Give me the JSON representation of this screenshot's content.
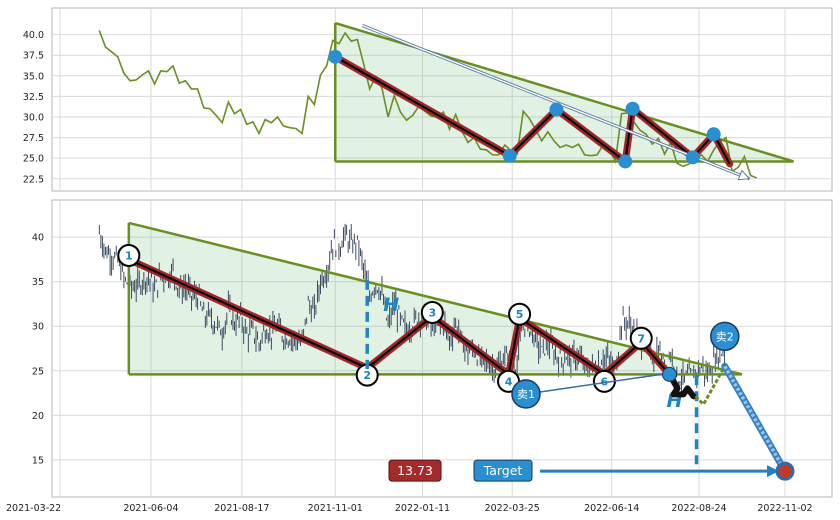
{
  "chart_data": [
    {
      "type": "line",
      "panel": "top",
      "y_ticks": [
        "40.0",
        "37.5",
        "35.0",
        "32.5",
        "30.0",
        "27.5",
        "25.0",
        "22.5"
      ],
      "ylim": [
        21.5,
        42.5
      ],
      "grid": true,
      "series": [
        {
          "color": "#6b8e23",
          "x": [
            "2021-04-23",
            "2021-04-28",
            "2021-05-03",
            "2021-05-08",
            "2021-05-13",
            "2021-05-18",
            "2021-05-23",
            "2021-05-28",
            "2021-06-02",
            "2021-06-07",
            "2021-06-12",
            "2021-06-17",
            "2021-06-22",
            "2021-06-27",
            "2021-07-02",
            "2021-07-07",
            "2021-07-12",
            "2021-07-17",
            "2021-07-22",
            "2021-07-27",
            "2021-08-01",
            "2021-08-06",
            "2021-08-11",
            "2021-08-16",
            "2021-08-21",
            "2021-08-26",
            "2021-08-31",
            "2021-09-05",
            "2021-09-10",
            "2021-09-15",
            "2021-09-20",
            "2021-09-25",
            "2021-09-30",
            "2021-10-05",
            "2021-10-10",
            "2021-10-15",
            "2021-10-20",
            "2021-10-25",
            "2021-10-30",
            "2021-11-04",
            "2021-11-09",
            "2021-11-14",
            "2021-11-19",
            "2021-11-24",
            "2021-11-29",
            "2021-12-04",
            "2021-12-09",
            "2021-12-14",
            "2021-12-19",
            "2021-12-24",
            "2021-12-29",
            "2022-01-03",
            "2022-01-08",
            "2022-01-13",
            "2022-01-18",
            "2022-01-23",
            "2022-01-28",
            "2022-02-02",
            "2022-02-07",
            "2022-02-12",
            "2022-02-17",
            "2022-02-22",
            "2022-02-27",
            "2022-03-04",
            "2022-03-09",
            "2022-03-14",
            "2022-03-19",
            "2022-03-24",
            "2022-03-29",
            "2022-04-03",
            "2022-04-08",
            "2022-04-13",
            "2022-04-18",
            "2022-04-23",
            "2022-04-28",
            "2022-05-03",
            "2022-05-08",
            "2022-05-13",
            "2022-05-18",
            "2022-05-23",
            "2022-05-28",
            "2022-06-02",
            "2022-06-07",
            "2022-06-12",
            "2022-06-17",
            "2022-06-22",
            "2022-06-27",
            "2022-07-02",
            "2022-07-07",
            "2022-07-12",
            "2022-07-17",
            "2022-07-22",
            "2022-07-27",
            "2022-08-01",
            "2022-08-06",
            "2022-08-11",
            "2022-08-16",
            "2022-08-21",
            "2022-08-26",
            "2022-08-31",
            "2022-09-05",
            "2022-09-10",
            "2022-09-15",
            "2022-09-20",
            "2022-09-25",
            "2022-09-30",
            "2022-10-05",
            "2022-10-10"
          ],
          "values": [
            40.5,
            38.5,
            37.9,
            37.3,
            35.3,
            34.4,
            34.5,
            35.1,
            35.6,
            34.0,
            35.6,
            35.5,
            36.2,
            34.1,
            34.4,
            33.4,
            33.4,
            31.1,
            31.0,
            30.2,
            29.3,
            31.8,
            30.4,
            30.9,
            29.1,
            29.4,
            28.0,
            29.7,
            29.3,
            30.0,
            28.9,
            28.7,
            28.6,
            28.0,
            32.5,
            31.5,
            35.1,
            36.2,
            39.3,
            38.9,
            40.2,
            39.2,
            39.4,
            36.5,
            33.4,
            34.9,
            33.5,
            30.0,
            32.6,
            30.6,
            29.6,
            30.2,
            31.3,
            30.7,
            30.1,
            30.0,
            30.6,
            28.5,
            30.3,
            28.3,
            26.9,
            27.5,
            26.1,
            26.0,
            25.4,
            25.4,
            26.6,
            25.9,
            25.5,
            30.7,
            29.8,
            28.5,
            27.1,
            28.2,
            27.1,
            26.3,
            26.6,
            26.3,
            26.7,
            25.4,
            25.3,
            25.4,
            26.6,
            26.1,
            24.6,
            30.4,
            30.5,
            29.4,
            28.4,
            27.9,
            26.7,
            27.4,
            25.5,
            26.9,
            24.4,
            24.0,
            24.3,
            24.8,
            25.4,
            24.6,
            26.0,
            27.0,
            27.5,
            23.4,
            23.9,
            25.2,
            22.9,
            22.6
          ]
        }
      ],
      "pattern": {
        "type": "descending triangle",
        "upper": [
          {
            "x": "2021-11-01",
            "y": 41.4
          },
          {
            "x": "2022-11-09",
            "y": 24.6
          }
        ],
        "lower": [
          {
            "x": "2021-11-01",
            "y": 24.6
          },
          {
            "x": "2022-11-09",
            "y": 24.6
          }
        ],
        "zigzag": [
          {
            "x": "2021-11-01",
            "y": 37.3
          },
          {
            "x": "2022-03-23",
            "y": 25.3
          },
          {
            "x": "2022-04-30",
            "y": 30.9
          },
          {
            "x": "2022-06-25",
            "y": 24.6
          },
          {
            "x": "2022-07-01",
            "y": 31.0
          },
          {
            "x": "2022-08-19",
            "y": 25.1
          },
          {
            "x": "2022-09-05",
            "y": 27.9
          },
          {
            "x": "2022-09-18",
            "y": 24.3
          }
        ],
        "arrow": {
          "from": {
            "x": "2021-11-23",
            "y": 41.1
          },
          "to": {
            "x": "2022-10-04",
            "y": 22.5
          }
        }
      }
    },
    {
      "type": "candlestick",
      "panel": "bottom",
      "x_ticks": [
        "2021-03-22",
        "2021-06-04",
        "2021-08-17",
        "2021-11-01",
        "2022-01-11",
        "2022-03-25",
        "2022-06-14",
        "2022-08-24",
        "2022-11-02"
      ],
      "y_ticks": [
        "40",
        "35",
        "30",
        "25",
        "20",
        "15"
      ],
      "ylim": [
        11.5,
        43.5
      ],
      "grid": true,
      "series_color": "#2b3a55",
      "pattern": {
        "type": "descending triangle",
        "upper": [
          {
            "x": "2021-05-17",
            "y": 41.6
          },
          {
            "x": "2022-09-28",
            "y": 24.6
          }
        ],
        "lower": [
          {
            "x": "2021-05-17",
            "y": 24.6
          },
          {
            "x": "2022-09-28",
            "y": 24.6
          }
        ],
        "zigzag": [
          {
            "label": "1",
            "x": "2021-05-17",
            "y": 37.5
          },
          {
            "label": "2",
            "x": "2021-11-27",
            "y": 25.3
          },
          {
            "label": "3",
            "x": "2022-01-19",
            "y": 31.1
          },
          {
            "label": "4",
            "x": "2022-03-22",
            "y": 24.6
          },
          {
            "label": "5",
            "x": "2022-03-31",
            "y": 30.9
          },
          {
            "label": "6",
            "x": "2022-06-08",
            "y": 24.6
          },
          {
            "label": "7",
            "x": "2022-07-08",
            "y": 28.2
          },
          {
            "label": "",
            "x": "2022-07-31",
            "y": 24.6
          }
        ],
        "height_label": "H",
        "height_line": {
          "x": "2021-11-27",
          "y1": 35.2,
          "y2": 25.2
        },
        "breakout_height_line": {
          "x": "2022-08-22",
          "y1": 24.5,
          "y2": 14.5
        },
        "sell_points": [
          {
            "label": "卖1",
            "x": "2022-07-31",
            "y": 24.6
          },
          {
            "label": "卖2",
            "x": "2022-09-14",
            "y": 25.5
          }
        ],
        "target_label": "Target",
        "target_value": "13.73",
        "target_point": {
          "x": "2022-11-02",
          "y": 13.73
        }
      }
    }
  ]
}
